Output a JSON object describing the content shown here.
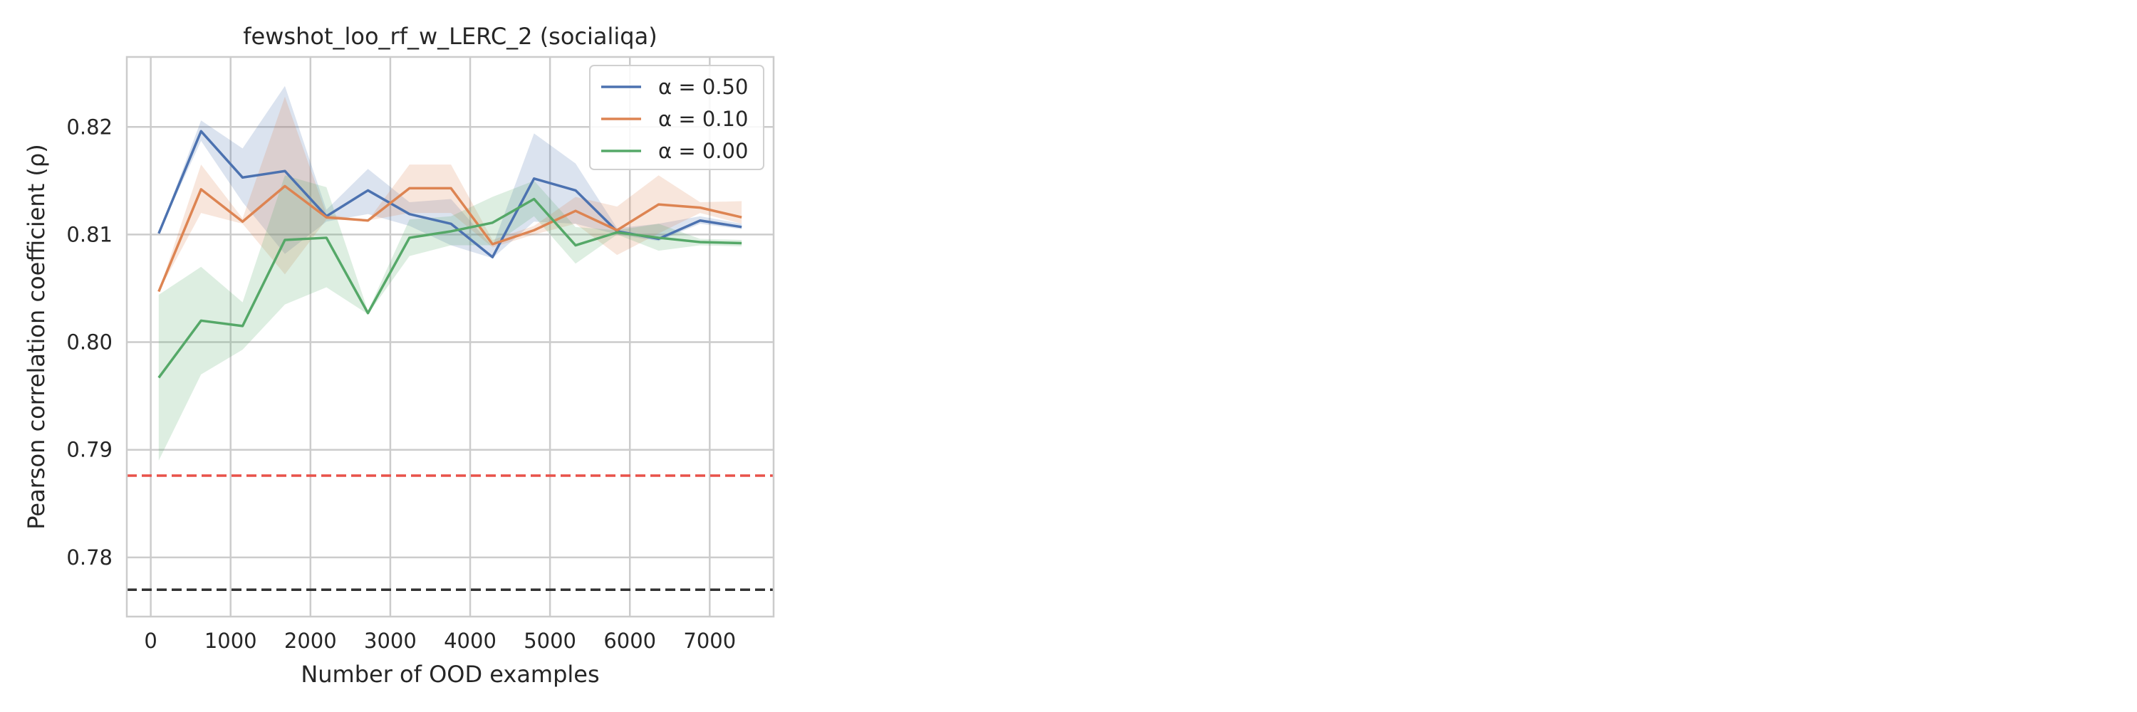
{
  "chart_data": {
    "type": "line",
    "title": "fewshot_loo_rf_w_LERC_2 (socialiqa)",
    "xlabel": "Number of OOD examples",
    "ylabel": "Pearson correlation coefficient (ρ)",
    "xlim": [
      -300,
      7800
    ],
    "ylim": [
      0.7745,
      0.8265
    ],
    "xticks": [
      0,
      1000,
      2000,
      3000,
      4000,
      5000,
      6000,
      7000
    ],
    "yticks": [
      0.78,
      0.79,
      0.8,
      0.81,
      0.82
    ],
    "grid": true,
    "legend_position": "top-right",
    "x": [
      100,
      630,
      1150,
      1680,
      2200,
      2720,
      3240,
      3760,
      4280,
      4800,
      5320,
      5840,
      6360,
      6880,
      7400
    ],
    "series": [
      {
        "name": "α = 0.50",
        "color": "#4c72b0",
        "values": [
          0.8101,
          0.8196,
          0.8153,
          0.8159,
          0.8117,
          0.8141,
          0.8119,
          0.811,
          0.8079,
          0.8152,
          0.8141,
          0.8103,
          0.8096,
          0.8113,
          0.8107
        ],
        "lower": [
          0.8101,
          0.8187,
          0.813,
          0.8082,
          0.8112,
          0.8119,
          0.8108,
          0.809,
          0.8078,
          0.8112,
          0.811,
          0.81,
          0.8094,
          0.811,
          0.8105
        ],
        "upper": [
          0.8101,
          0.8206,
          0.818,
          0.8238,
          0.8123,
          0.8161,
          0.813,
          0.8133,
          0.8089,
          0.8194,
          0.8166,
          0.8106,
          0.811,
          0.8117,
          0.811
        ]
      },
      {
        "name": "α = 0.10",
        "color": "#dd8452",
        "values": [
          0.8047,
          0.8142,
          0.8112,
          0.8145,
          0.8116,
          0.8113,
          0.8143,
          0.8143,
          0.8091,
          0.8104,
          0.8122,
          0.8104,
          0.8128,
          0.8125,
          0.8116
        ],
        "lower": [
          0.8047,
          0.812,
          0.811,
          0.8063,
          0.8114,
          0.8113,
          0.812,
          0.812,
          0.8088,
          0.81,
          0.811,
          0.8081,
          0.8101,
          0.812,
          0.811
        ],
        "upper": [
          0.8047,
          0.8165,
          0.8115,
          0.8228,
          0.8119,
          0.8113,
          0.8165,
          0.8165,
          0.8095,
          0.8108,
          0.8135,
          0.8126,
          0.8155,
          0.813,
          0.8131
        ]
      },
      {
        "name": "α = 0.00",
        "color": "#55a868",
        "values": [
          0.7967,
          0.802,
          0.8015,
          0.8095,
          0.8097,
          0.8027,
          0.8097,
          0.8103,
          0.8111,
          0.8133,
          0.809,
          0.8102,
          0.8097,
          0.8093,
          0.8092
        ],
        "lower": [
          0.789,
          0.797,
          0.7993,
          0.8035,
          0.8051,
          0.8026,
          0.808,
          0.809,
          0.809,
          0.8117,
          0.8073,
          0.81,
          0.8085,
          0.809,
          0.8089
        ],
        "upper": [
          0.8044,
          0.807,
          0.8037,
          0.8155,
          0.8144,
          0.8029,
          0.8114,
          0.8117,
          0.8135,
          0.815,
          0.8107,
          0.8104,
          0.811,
          0.8096,
          0.8095
        ]
      }
    ],
    "reference_lines": [
      {
        "y": 0.7876,
        "color": "#e8524a",
        "style": "dashed"
      },
      {
        "y": 0.777,
        "color": "#333333",
        "style": "dashed"
      }
    ]
  }
}
